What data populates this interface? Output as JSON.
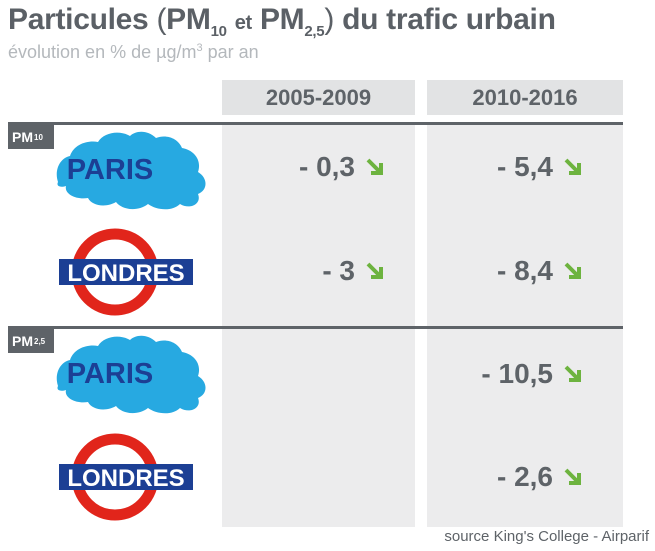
{
  "title": {
    "main": "Particules",
    "pm": "PM",
    "sub10": "10",
    "et": "et",
    "sub25": "2,5",
    "rest": "du trafic urbain"
  },
  "subtitle": {
    "text": "évolution en % de µg/m",
    "sup": "3",
    "tail": " par an"
  },
  "source": "source King's College - Airparif",
  "colors": {
    "paris_blue": "#27a9e1",
    "london_red": "#e1251b",
    "london_blue": "#1c3f94",
    "arrow_green": "#6db33f",
    "text_grey": "#5e6368"
  },
  "chart_data": {
    "type": "table",
    "columns": [
      "2005-2009",
      "2010-2016"
    ],
    "groups": [
      {
        "pollutant": "PM",
        "sub": "10",
        "rows": [
          {
            "city": "PARIS",
            "values": [
              "- 0,3",
              "- 5,4"
            ],
            "trend": [
              "down",
              "down"
            ]
          },
          {
            "city": "LONDRES",
            "values": [
              "- 3",
              "- 8,4"
            ],
            "trend": [
              "down",
              "down"
            ]
          }
        ]
      },
      {
        "pollutant": "PM",
        "sub": "2,5",
        "rows": [
          {
            "city": "PARIS",
            "values": [
              "",
              "- 10,5"
            ],
            "trend": [
              "",
              "down"
            ]
          },
          {
            "city": "LONDRES",
            "values": [
              "",
              "- 2,6"
            ],
            "trend": [
              "",
              "down"
            ]
          }
        ]
      }
    ]
  }
}
